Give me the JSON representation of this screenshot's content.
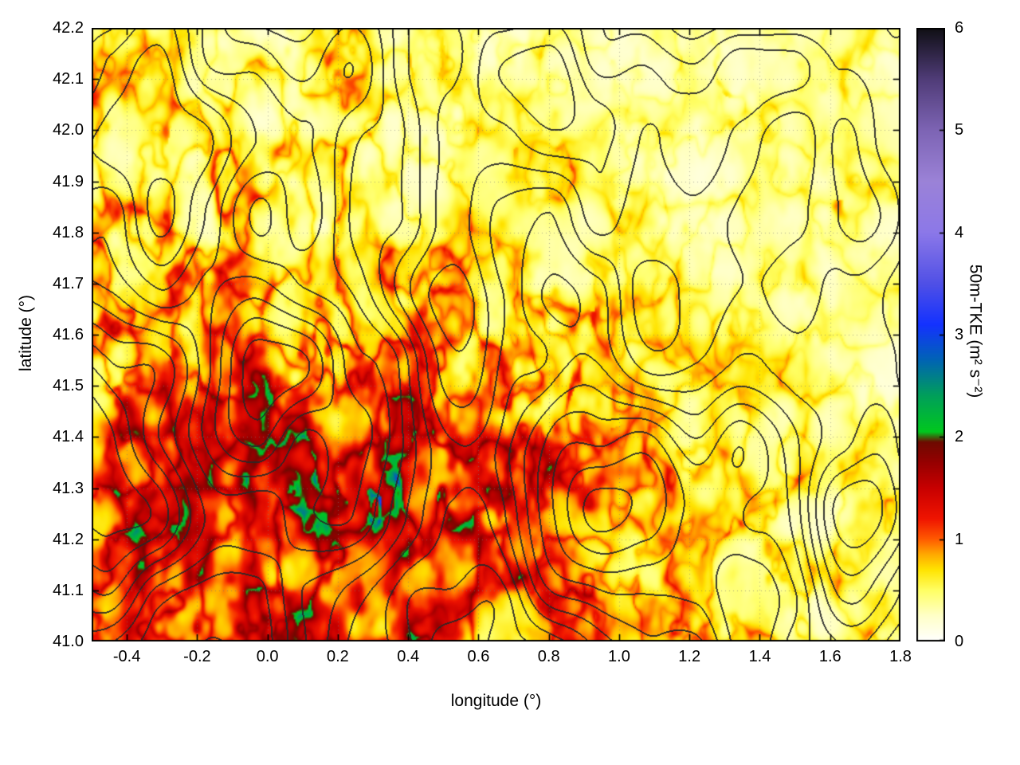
{
  "figure": {
    "background": "#ffffff"
  },
  "chart_data": {
    "type": "heatmap",
    "title": "",
    "xlabel": "longitude (°)",
    "ylabel": "latitude (°)",
    "xlim": [
      -0.5,
      1.8
    ],
    "ylim": [
      41.0,
      42.2
    ],
    "xtick_values": [
      -0.4,
      -0.2,
      0,
      0.2,
      0.4,
      0.6,
      0.8,
      1.0,
      1.2,
      1.4,
      1.6,
      1.8
    ],
    "xtick_labels": [
      "-0.4",
      "-0.2",
      "0.0",
      "0.2",
      "0.4",
      "0.6",
      "0.8",
      "1.0",
      "1.2",
      "1.4",
      "1.6",
      "1.8"
    ],
    "ytick_values": [
      41.0,
      41.1,
      41.2,
      41.3,
      41.4,
      41.5,
      41.6,
      41.7,
      41.8,
      41.9,
      42.0,
      42.1,
      42.2
    ],
    "ytick_labels": [
      "41.0",
      "41.1",
      "41.2",
      "41.3",
      "41.4",
      "41.5",
      "41.6",
      "41.7",
      "41.8",
      "41.9",
      "42.0",
      "42.1",
      "42.2"
    ],
    "grid": true,
    "colorbar": {
      "label": "50m-TKE (m² s⁻²)",
      "min": 0,
      "max": 6,
      "tick_values": [
        0,
        1,
        2,
        3,
        4,
        5,
        6
      ],
      "tick_labels": [
        "0",
        "1",
        "2",
        "3",
        "4",
        "5",
        "6"
      ],
      "palette": [
        [
          0.0,
          "#ffffff"
        ],
        [
          0.25,
          "#ffffc8"
        ],
        [
          0.5,
          "#ffff64"
        ],
        [
          0.7,
          "#ffe400"
        ],
        [
          0.85,
          "#ffaa00"
        ],
        [
          1.0,
          "#ff5a00"
        ],
        [
          1.2,
          "#f01400"
        ],
        [
          1.5,
          "#c80000"
        ],
        [
          1.75,
          "#960000"
        ],
        [
          1.95,
          "#6e0a00"
        ],
        [
          2.05,
          "#00c81e"
        ],
        [
          2.4,
          "#00a05a"
        ],
        [
          2.75,
          "#0064b4"
        ],
        [
          3.1,
          "#1432ff"
        ],
        [
          3.5,
          "#5050e6"
        ],
        [
          4.0,
          "#8c78e8"
        ],
        [
          4.5,
          "#9b82d7"
        ],
        [
          5.0,
          "#7d64b4"
        ],
        [
          5.5,
          "#503c78"
        ],
        [
          6.0,
          "#0f0f14"
        ]
      ]
    },
    "overlay_contours": {
      "color": "#282828",
      "description": "black terrain elevation contour lines overlaid on the TKE field"
    },
    "field_description": "50 m turbulent kinetic energy map: mostly 0–1 m²s⁻² (white to yellow/orange) with red and dark-red filamentary maxima concentrated in the southwest and along terrain ridges, and isolated green/blue spikes of 2–3.5 m²s⁻² around (0.3°–0.6° lon, 41.1°–41.45° lat); the northeast quadrant is mostly quiescent (near-white)."
  }
}
